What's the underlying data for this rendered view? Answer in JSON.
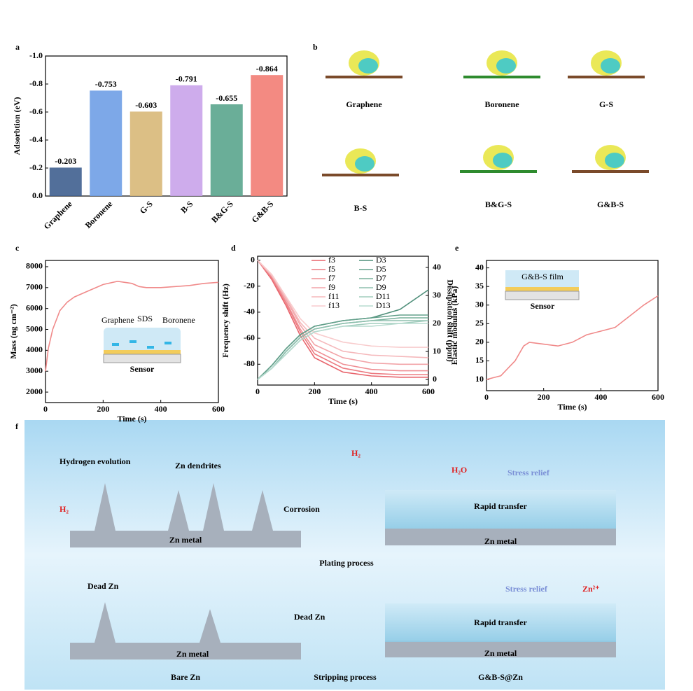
{
  "panel_labels": [
    "a",
    "b",
    "c",
    "d",
    "e",
    "f"
  ],
  "chart_data": [
    {
      "type": "bar",
      "ylabel": "Adsorbtion (eV)",
      "categories": [
        "Graphene",
        "Boronene",
        "G-S",
        "B-S",
        "B&G-S",
        "G&B-S"
      ],
      "values": [
        -0.203,
        -0.753,
        -0.603,
        -0.791,
        -0.655,
        -0.864
      ],
      "colors": [
        "#3f5f8f",
        "#6f9fe6",
        "#d8b878",
        "#c9a3ea",
        "#5aa58d",
        "#f27d74"
      ],
      "ylim": [
        0,
        -1
      ],
      "yticks": [
        {
          "value": 0,
          "label": "0.0"
        },
        -0.2,
        -0.4,
        -0.6,
        -0.8,
        {
          "value": -1,
          "label": "-1.0"
        }
      ]
    },
    {
      "type": "line",
      "xlabel": "Time (s)",
      "ylabel": "Mass (ng cm⁻²)",
      "x": [
        0,
        10,
        25,
        50,
        75,
        100,
        150,
        200,
        250,
        300,
        325,
        350,
        400,
        450,
        500,
        550,
        600
      ],
      "series": [
        {
          "color": "#f08a8a",
          "values": [
            3000,
            4100,
            5000,
            5900,
            6300,
            6550,
            6850,
            7150,
            7300,
            7200,
            7050,
            7000,
            7000,
            7050,
            7100,
            7200,
            7250
          ]
        }
      ],
      "xlim": [
        0,
        600
      ],
      "xticks": [
        0,
        200,
        400,
        600
      ],
      "ylim": [
        1500,
        8300
      ],
      "yticks": [
        2000,
        3000,
        4000,
        5000,
        6000,
        7000,
        8000
      ],
      "annotations": [
        "Graphene",
        "SDS",
        "Boronene",
        "Sensor"
      ]
    },
    {
      "type": "line",
      "xlabel": "Time (s)",
      "ylabel": "Frequency shift (Hz)",
      "y2label": "Dissipation shift (ppm)",
      "x": [
        0,
        50,
        100,
        150,
        200,
        300,
        400,
        500,
        600
      ],
      "series": [
        {
          "name": "f3",
          "color": "#e8646c",
          "values": [
            0,
            -15,
            -35,
            -58,
            -75,
            -86,
            -89,
            -90,
            -90
          ]
        },
        {
          "name": "f5",
          "color": "#ec7a80",
          "values": [
            0,
            -14,
            -33,
            -55,
            -72,
            -83,
            -87,
            -88,
            -88
          ]
        },
        {
          "name": "f7",
          "color": "#ef8f94",
          "values": [
            0,
            -13,
            -32,
            -53,
            -69,
            -80,
            -84,
            -85,
            -85
          ]
        },
        {
          "name": "f9",
          "color": "#f2a4a8",
          "values": [
            0,
            -12,
            -30,
            -50,
            -65,
            -75,
            -79,
            -80,
            -80
          ]
        },
        {
          "name": "f11",
          "color": "#f5b8bb",
          "values": [
            0,
            -12,
            -29,
            -48,
            -60,
            -70,
            -73,
            -74,
            -75
          ]
        },
        {
          "name": "f13",
          "color": "#f8cccd",
          "values": [
            0,
            -11,
            -28,
            -45,
            -56,
            -63,
            -66,
            -67,
            -67
          ]
        },
        {
          "name": "D3",
          "color": "#4f8f7a",
          "axis": "y2",
          "values": [
            0,
            5,
            11,
            16,
            19,
            21,
            22,
            25,
            32
          ]
        },
        {
          "name": "D5",
          "color": "#63a08b",
          "axis": "y2",
          "values": [
            0,
            5,
            11,
            16,
            19,
            21,
            22,
            23,
            23
          ]
        },
        {
          "name": "D7",
          "color": "#78b09c",
          "axis": "y2",
          "values": [
            0,
            4,
            10,
            15,
            18,
            20,
            21,
            22,
            22
          ]
        },
        {
          "name": "D9",
          "color": "#8dbfad",
          "axis": "y2",
          "values": [
            0,
            4,
            10,
            15,
            18,
            20,
            21,
            21,
            21
          ]
        },
        {
          "name": "D11",
          "color": "#a2cdbe",
          "axis": "y2",
          "values": [
            0,
            4,
            9,
            14,
            17,
            19,
            20,
            20,
            21
          ]
        },
        {
          "name": "D13",
          "color": "#b7dbcf",
          "axis": "y2",
          "values": [
            0,
            4,
            9,
            14,
            17,
            19,
            19,
            20,
            20
          ]
        }
      ],
      "xlim": [
        0,
        600
      ],
      "xticks": [
        0,
        200,
        400,
        600
      ],
      "ylim": [
        -96,
        3
      ],
      "yticks": [
        -80,
        -60,
        -40,
        -20,
        0
      ],
      "y2lim": [
        -2,
        44
      ],
      "y2ticks": [
        0,
        10,
        20,
        30,
        40
      ]
    },
    {
      "type": "line",
      "xlabel": "Time (s)",
      "ylabel": "Elastic modulus (kPa)",
      "x": [
        0,
        25,
        50,
        75,
        100,
        130,
        150,
        200,
        250,
        300,
        350,
        400,
        450,
        500,
        550,
        600
      ],
      "series": [
        {
          "color": "#f08a8a",
          "values": [
            10,
            10.5,
            11,
            13,
            15,
            19,
            20,
            19.5,
            19,
            20,
            22,
            23,
            24,
            27,
            30,
            32.5
          ]
        }
      ],
      "xlim": [
        0,
        600
      ],
      "xticks": [
        0,
        200,
        400,
        600
      ],
      "ylim": [
        7,
        42
      ],
      "yticks": [
        10,
        15,
        20,
        25,
        30,
        35,
        40
      ],
      "annotations": [
        "G&B-S film",
        "Sensor"
      ]
    }
  ],
  "panel_b": {
    "labels": [
      "Graphene",
      "Boronene",
      "G-S",
      "B-S",
      "B&G-S",
      "G&B-S"
    ]
  },
  "panel_f": {
    "left_top": [
      "Hydrogen evolution",
      "Zn dendrites",
      "Corrosion",
      "H₂",
      "Zn metal"
    ],
    "right_top": [
      "H₂",
      "H₂O",
      "Stress relief",
      "Rapid transfer",
      "Zn metal"
    ],
    "middle": "Plating process",
    "left_bottom": [
      "Dead Zn",
      "Dead Zn",
      "Zn metal"
    ],
    "right_bottom": [
      "Stress relief",
      "Zn²⁺",
      "Rapid transfer",
      "Zn metal"
    ],
    "captions": [
      "Bare Zn",
      "Stripping process",
      "G&B-S@Zn"
    ]
  }
}
